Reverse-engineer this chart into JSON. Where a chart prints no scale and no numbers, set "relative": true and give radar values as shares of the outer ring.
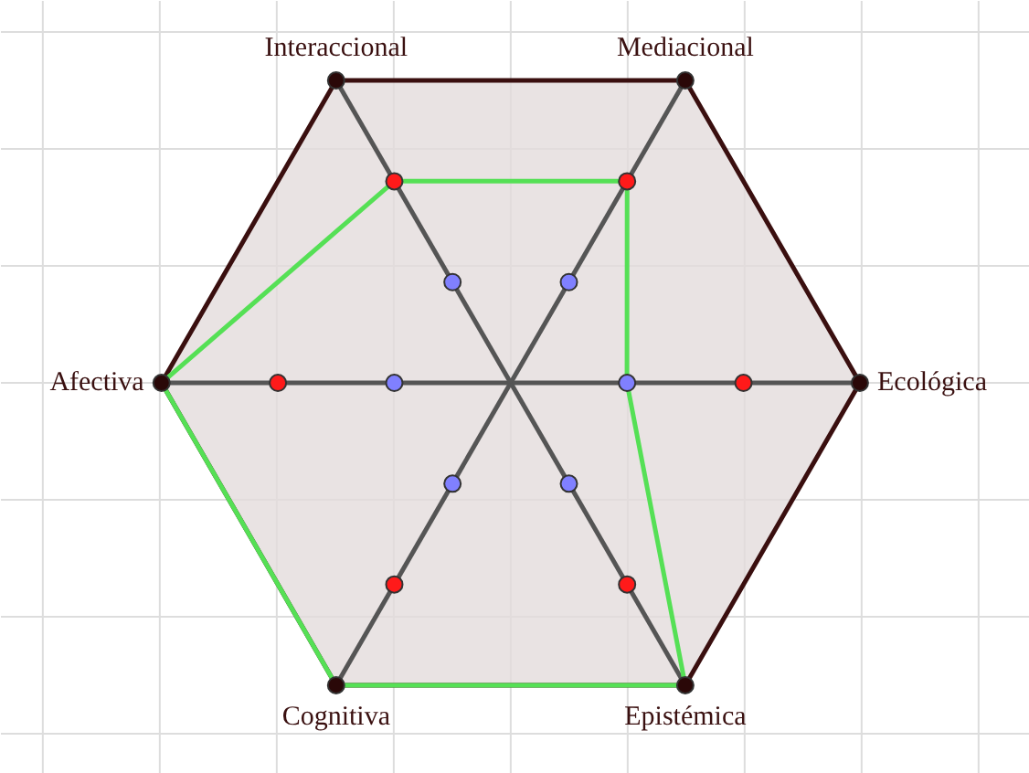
{
  "chart_data": {
    "type": "radar",
    "relative": true,
    "grid": true,
    "categories": [
      "Mediacional",
      "Ecológica",
      "Epistémica",
      "Cognitiva",
      "Afectiva",
      "Interaccional"
    ],
    "series": [
      {
        "color": "#55e055",
        "values": [
          0.667,
          0.333,
          1,
          1,
          1,
          0.667
        ]
      }
    ],
    "line_style": "solid"
  }
}
